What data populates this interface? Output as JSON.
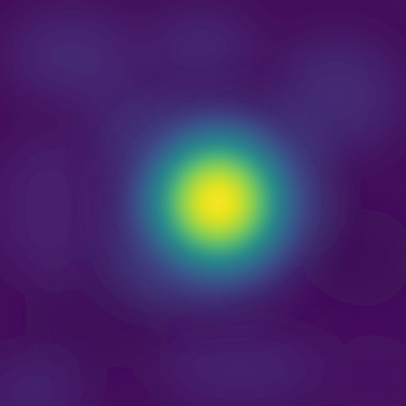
{
  "image": {
    "subject": "heatmap-blob",
    "colormap": "viridis",
    "colors": {
      "background": "#440f5c",
      "dark_patch": "#3f0a58",
      "mid_purple": "#472a7a",
      "blue": "#33638d",
      "teal": "#21918c",
      "green": "#5ec962",
      "yellow": "#fde725"
    }
  }
}
